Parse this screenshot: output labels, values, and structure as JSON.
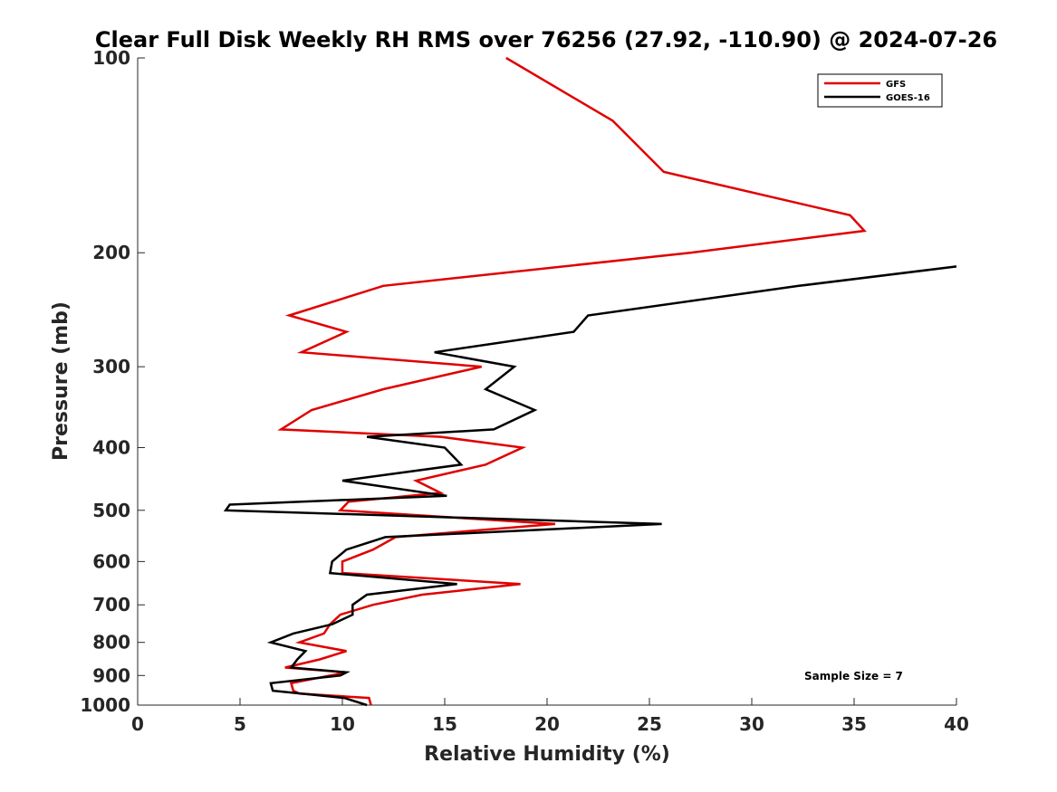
{
  "chart_data": {
    "type": "line",
    "title": "Clear Full Disk Weekly RH RMS over 76256 (27.92, -110.90) @ 2024-07-26",
    "xlabel": "Relative Humidity (%)",
    "ylabel": "Pressure (mb)",
    "xlim": [
      0,
      40
    ],
    "ylim": [
      1000,
      100
    ],
    "y_scale": "log",
    "x_ticks": [
      0,
      5,
      10,
      15,
      20,
      25,
      30,
      35,
      40
    ],
    "x_tick_labels": [
      "0",
      "5",
      "10",
      "15",
      "20",
      "25",
      "30",
      "35",
      "40"
    ],
    "y_ticks": [
      100,
      200,
      300,
      400,
      500,
      600,
      700,
      800,
      900,
      1000
    ],
    "y_tick_labels": [
      "100",
      "200",
      "300",
      "400",
      "500",
      "600",
      "700",
      "800",
      "900",
      "1000"
    ],
    "grid": false,
    "legend_position": "top-right",
    "annotation": "Sample Size = 7",
    "series": [
      {
        "name": "GFS",
        "color": "#e00000",
        "points": [
          [
            18.0,
            100
          ],
          [
            23.2,
            125
          ],
          [
            25.7,
            150
          ],
          [
            34.8,
            175
          ],
          [
            35.5,
            185
          ],
          [
            27.0,
            200
          ],
          [
            12.0,
            225
          ],
          [
            7.4,
            250
          ],
          [
            10.2,
            265
          ],
          [
            8.0,
            285
          ],
          [
            16.8,
            300
          ],
          [
            12.0,
            325
          ],
          [
            8.5,
            350
          ],
          [
            7.0,
            375
          ],
          [
            14.8,
            385
          ],
          [
            18.8,
            400
          ],
          [
            17.0,
            425
          ],
          [
            13.6,
            450
          ],
          [
            14.8,
            470
          ],
          [
            10.3,
            485
          ],
          [
            9.9,
            500
          ],
          [
            20.4,
            525
          ],
          [
            12.6,
            550
          ],
          [
            11.5,
            575
          ],
          [
            10.0,
            600
          ],
          [
            10.0,
            625
          ],
          [
            18.7,
            650
          ],
          [
            13.9,
            675
          ],
          [
            11.5,
            700
          ],
          [
            9.9,
            725
          ],
          [
            9.4,
            750
          ],
          [
            9.1,
            775
          ],
          [
            7.9,
            800
          ],
          [
            10.2,
            825
          ],
          [
            8.9,
            850
          ],
          [
            7.2,
            875
          ],
          [
            10.2,
            890
          ],
          [
            9.4,
            900
          ],
          [
            7.5,
            925
          ],
          [
            7.6,
            950
          ],
          [
            7.9,
            960
          ],
          [
            11.3,
            975
          ],
          [
            11.4,
            1000
          ]
        ]
      },
      {
        "name": "GOES-16",
        "color": "#000000",
        "points": [
          [
            40.0,
            210
          ],
          [
            32.3,
            225
          ],
          [
            22.0,
            250
          ],
          [
            21.3,
            265
          ],
          [
            14.5,
            285
          ],
          [
            18.4,
            300
          ],
          [
            17.0,
            325
          ],
          [
            19.4,
            350
          ],
          [
            17.4,
            375
          ],
          [
            11.2,
            385
          ],
          [
            15.0,
            400
          ],
          [
            15.8,
            425
          ],
          [
            10.0,
            450
          ],
          [
            15.1,
            475
          ],
          [
            4.5,
            490
          ],
          [
            4.3,
            500
          ],
          [
            25.6,
            525
          ],
          [
            12.1,
            550
          ],
          [
            10.2,
            575
          ],
          [
            9.5,
            600
          ],
          [
            9.4,
            625
          ],
          [
            15.6,
            650
          ],
          [
            11.2,
            675
          ],
          [
            10.5,
            700
          ],
          [
            10.5,
            725
          ],
          [
            9.5,
            750
          ],
          [
            7.6,
            775
          ],
          [
            6.5,
            800
          ],
          [
            8.2,
            825
          ],
          [
            7.8,
            850
          ],
          [
            7.5,
            875
          ],
          [
            10.2,
            890
          ],
          [
            9.9,
            900
          ],
          [
            6.5,
            925
          ],
          [
            6.6,
            950
          ],
          [
            10.1,
            975
          ],
          [
            11.2,
            1000
          ]
        ]
      }
    ]
  }
}
